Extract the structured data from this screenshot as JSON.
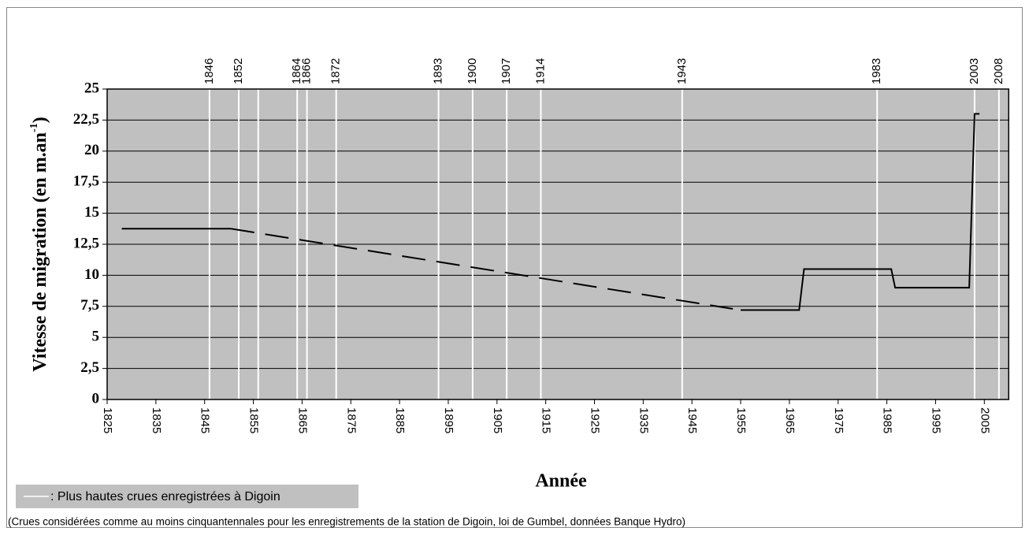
{
  "chart_data": {
    "type": "line",
    "ylabel": [
      "Vitesse de migration (en m.an",
      "-1",
      ")"
    ],
    "xlabel": "Année",
    "xlim": [
      1825,
      2010
    ],
    "xticks": [
      1825,
      1835,
      1845,
      1855,
      1865,
      1875,
      1885,
      1895,
      1905,
      1915,
      1925,
      1935,
      1945,
      1955,
      1965,
      1975,
      1985,
      1995,
      2005
    ],
    "ylim": [
      0,
      25
    ],
    "yticks": [
      0,
      {
        "value": 2.5,
        "label": "2,5"
      },
      5,
      {
        "value": 7.5,
        "label": "7,5"
      },
      10,
      {
        "value": 12.5,
        "label": "12,5"
      },
      15,
      {
        "value": 17.5,
        "label": "17,5"
      },
      20,
      {
        "value": 22.5,
        "label": "22,5"
      },
      25
    ],
    "grid": true,
    "color": "#000000",
    "background": "#c0c0c0",
    "lines": [
      {
        "style": "solid",
        "x": [
          1828,
          1850.4
        ],
        "values": [
          13.75,
          13.75
        ]
      },
      {
        "style": "dashed",
        "x": [
          1850.4,
          1953.4
        ],
        "values": [
          13.75,
          7.3
        ]
      },
      {
        "style": "solid",
        "x": [
          1955,
          1967,
          1968,
          1985.9,
          1986.7,
          2001.9,
          2003,
          2004
        ],
        "values": [
          7.2,
          7.2,
          10.5,
          10.5,
          9,
          9,
          23,
          23
        ]
      }
    ],
    "floods": {
      "color": "#ffffff",
      "years": [
        1846,
        1852,
        {
          "value": 1856,
          "label": null
        },
        1864,
        1866,
        1872,
        1893,
        1900,
        1907,
        1914,
        1943,
        1983,
        2003,
        2008
      ],
      "legend": ": Plus hautes crues enregistrées à Digoin"
    },
    "footnote": "(Crues considérées comme au moins cinquantennales pour les enregistrements de la station de Digoin, loi de Gumbel, données Banque Hydro)"
  }
}
